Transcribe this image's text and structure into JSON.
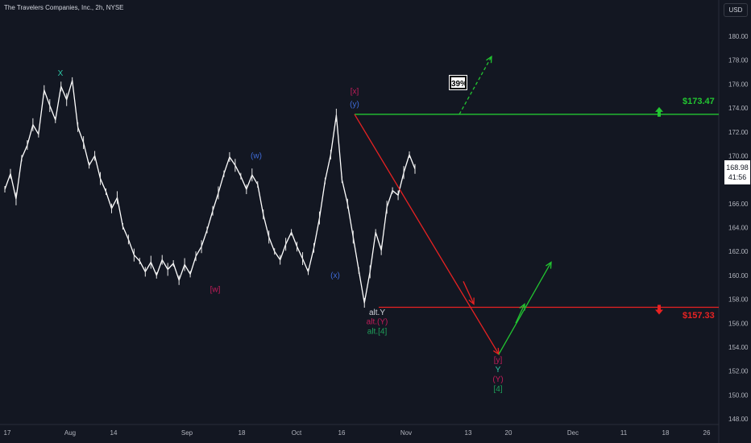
{
  "header": {
    "title": "The Travelers Companies, Inc., 2h, NYSE",
    "currency_button": "USD"
  },
  "last_price": {
    "value": "168.98",
    "countdown": "41:56"
  },
  "probability_label": "39%",
  "levels": {
    "upper": {
      "label": "$173.47",
      "value": 173.47,
      "color": "#22c531"
    },
    "lower": {
      "label": "$157.33",
      "value": 157.33,
      "color": "#e82222"
    }
  },
  "chart_data": {
    "type": "line",
    "title": "",
    "ylim": [
      147,
      182
    ],
    "y_ticks": [
      148,
      150,
      152,
      154,
      156,
      158,
      160,
      162,
      164,
      166,
      168,
      170,
      172,
      174,
      176,
      178,
      180
    ],
    "x_ticks": [
      "17",
      "Aug",
      "14",
      "Sep",
      "18",
      "Oct",
      "16",
      "Nov",
      "13",
      "20",
      "Dec",
      "11",
      "18",
      "26"
    ],
    "series": [
      {
        "values": [
          167.2,
          168.5,
          166.4,
          169.8,
          170.9,
          172.6,
          171.8,
          175.5,
          174.2,
          173.0,
          175.8,
          174.7,
          176.3,
          172.4,
          171.1,
          169.2,
          170.0,
          168.1,
          167.0,
          165.6,
          166.5,
          164.1,
          163.0,
          161.7,
          161.2,
          160.3,
          161.1,
          160.0,
          161.3,
          160.5,
          161.0,
          159.6,
          160.9,
          160.1,
          161.6,
          162.4,
          163.8,
          165.4,
          166.9,
          168.5,
          169.9,
          169.2,
          168.3,
          167.2,
          168.4,
          167.6,
          165.1,
          163.2,
          162.0,
          161.3,
          162.6,
          163.6,
          162.4,
          161.4,
          160.3,
          162.3,
          164.8,
          167.9,
          170.1,
          173.4,
          168.0,
          166.0,
          163.2,
          160.4,
          157.7,
          160.3,
          163.6,
          162.1,
          165.7,
          167.1,
          166.7,
          168.6,
          170.1,
          168.9
        ]
      }
    ],
    "wave_labels": [
      {
        "text": "X",
        "color": "#2bc8a6",
        "y": 176.7
      },
      {
        "text": "(w)",
        "color": "#3f6bd8",
        "y": 169.8
      },
      {
        "text": "[w]",
        "color": "#c21c5a",
        "y": 158.6
      },
      {
        "text": "(x)",
        "color": "#3f6bd8",
        "y": 159.8
      },
      {
        "text": "[x]",
        "color": "#c21c5a",
        "y": 175.2
      },
      {
        "text": "(y)",
        "color": "#3f6bd8",
        "y": 174.1
      },
      {
        "text": "alt.Y",
        "color": "#d1d4dc",
        "y": 156.7
      },
      {
        "text": "alt.(Y)",
        "color": "#c21c5a",
        "y": 155.9
      },
      {
        "text": "alt.[4]",
        "color": "#1fa05a",
        "y": 155.1
      },
      {
        "text": "[y]",
        "color": "#c21c5a",
        "y": 152.7
      },
      {
        "text": "Y",
        "color": "#2bc8a6",
        "y": 151.9
      },
      {
        "text": "(Y)",
        "color": "#c21c5a",
        "y": 151.1
      },
      {
        "text": "[4]",
        "color": "#1fa05a",
        "y": 150.3
      }
    ],
    "projections": [
      {
        "name": "decline",
        "color": "#e82222",
        "from": 173.47,
        "to": 153.4
      },
      {
        "name": "rebound",
        "color": "#22c531",
        "from": 153.4,
        "to": 161.1
      },
      {
        "name": "alt-breakout",
        "color": "#22c531",
        "from": 173.47,
        "to": 178.3
      }
    ]
  }
}
